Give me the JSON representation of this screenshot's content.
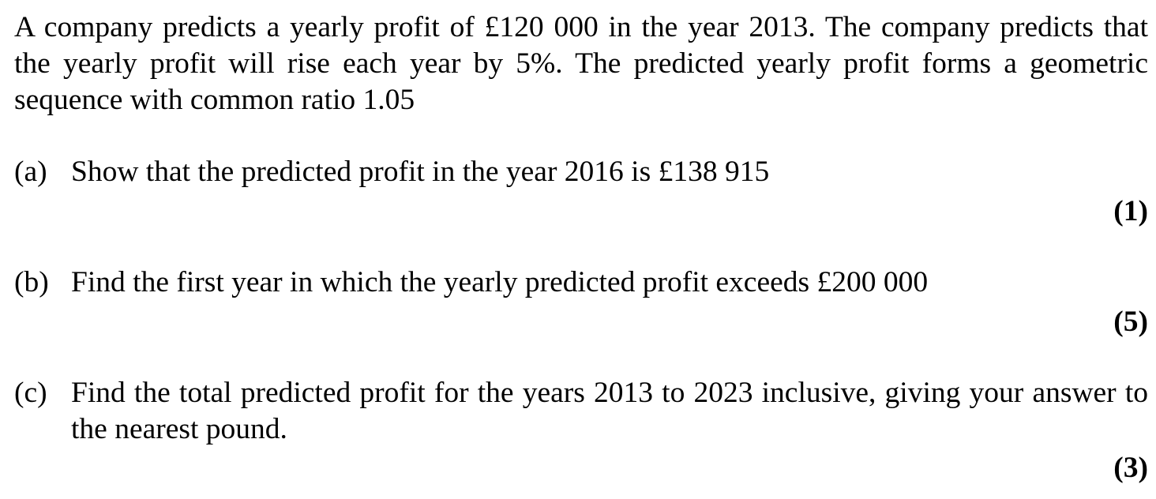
{
  "question": {
    "intro": "A company predicts a yearly profit of £120 000 in the year 2013. The company predicts that the yearly profit will rise each year by 5%. The predicted yearly profit forms a geometric sequence with common ratio 1.05",
    "parts": [
      {
        "label": "(a)",
        "text": "Show that the predicted profit in the year 2016 is £138 915",
        "marks": "(1)"
      },
      {
        "label": "(b)",
        "text": "Find the first year in which the yearly predicted profit exceeds £200 000",
        "marks": "(5)"
      },
      {
        "label": "(c)",
        "text": "Find the total predicted profit for the years 2013 to 2023 inclusive, giving your answer to the nearest pound.",
        "marks": "(3)"
      }
    ]
  }
}
